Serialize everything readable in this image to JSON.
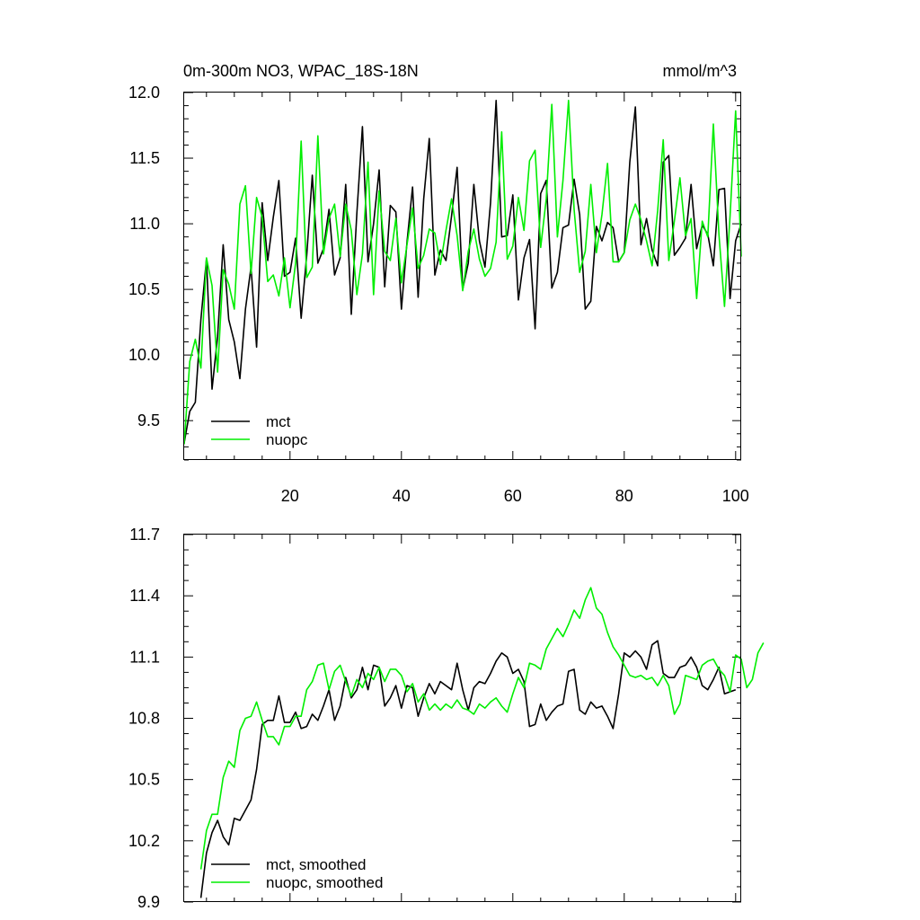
{
  "chart_data": [
    {
      "type": "line",
      "title_left": "0m-300m NO3, WPAC_18S-18N",
      "title_right": "mmol/m^3",
      "xlim": [
        1,
        101
      ],
      "ylim": [
        9.2,
        12.0
      ],
      "xticks": [
        20,
        40,
        60,
        80,
        100
      ],
      "yticks": [
        9.5,
        10.0,
        10.5,
        11.0,
        11.5,
        12.0
      ],
      "ytick_labels": [
        "9.5",
        "10.0",
        "10.5",
        "11.0",
        "11.5",
        "12.0"
      ],
      "legend_position": "lower-left",
      "series": [
        {
          "name": "mct",
          "color": "#000000",
          "x_start": 1,
          "values": [
            9.33,
            9.57,
            9.64,
            10.27,
            10.73,
            9.74,
            10.14,
            10.84,
            10.27,
            10.1,
            9.82,
            10.35,
            10.67,
            10.06,
            11.16,
            10.72,
            11.05,
            11.33,
            10.6,
            10.63,
            10.89,
            10.28,
            10.76,
            11.37,
            10.7,
            10.81,
            11.11,
            10.61,
            10.74,
            11.3,
            10.31,
            11.08,
            11.74,
            10.71,
            11.0,
            11.41,
            10.52,
            11.14,
            11.09,
            10.35,
            10.86,
            11.28,
            10.44,
            11.19,
            11.65,
            10.61,
            10.8,
            10.72,
            11.06,
            11.43,
            10.5,
            10.7,
            11.3,
            10.87,
            10.67,
            11.16,
            11.94,
            10.9,
            10.91,
            11.22,
            10.42,
            10.74,
            10.88,
            10.2,
            11.23,
            11.33,
            10.51,
            10.63,
            10.97,
            10.99,
            11.34,
            11.07,
            10.35,
            10.41,
            10.98,
            10.87,
            11.01,
            10.97,
            10.71,
            10.78,
            11.47,
            11.89,
            10.84,
            11.04,
            10.8,
            10.68,
            11.47,
            11.52,
            10.76,
            10.82,
            10.89,
            11.3,
            10.81,
            10.99,
            10.92,
            10.68,
            11.26,
            11.27,
            10.43,
            10.87,
            11.0
          ]
        },
        {
          "name": "nuopc",
          "color": "#00ee00",
          "x_start": 1,
          "values": [
            9.32,
            9.95,
            10.12,
            9.9,
            10.74,
            10.53,
            9.87,
            10.65,
            10.54,
            10.35,
            11.15,
            11.29,
            10.62,
            11.2,
            11.05,
            10.56,
            10.61,
            10.45,
            10.74,
            10.36,
            10.7,
            11.63,
            10.59,
            10.67,
            11.67,
            10.77,
            11.04,
            11.15,
            10.75,
            11.15,
            10.95,
            10.46,
            10.77,
            11.47,
            10.46,
            11.25,
            10.79,
            10.72,
            11.04,
            10.55,
            10.84,
            11.12,
            10.66,
            10.76,
            10.96,
            10.93,
            10.69,
            10.95,
            11.19,
            10.91,
            10.49,
            10.79,
            10.96,
            10.73,
            10.6,
            10.66,
            10.86,
            11.7,
            10.73,
            10.83,
            11.2,
            10.95,
            11.48,
            11.56,
            10.82,
            11.19,
            11.91,
            10.9,
            11.33,
            11.94,
            11.11,
            10.63,
            10.79,
            11.3,
            10.78,
            11.07,
            11.46,
            10.71,
            10.71,
            10.78,
            11.03,
            11.15,
            11.03,
            10.87,
            10.68,
            11.1,
            11.64,
            10.72,
            11.02,
            11.35,
            10.91,
            11.04,
            10.43,
            11.02,
            10.9,
            11.76,
            10.92,
            10.37,
            11.06,
            11.86,
            10.75
          ]
        }
      ]
    },
    {
      "type": "line",
      "xlim": [
        1,
        101
      ],
      "ylim": [
        9.9,
        11.7
      ],
      "xticks": [
        20,
        40,
        60,
        80,
        100
      ],
      "yticks": [
        9.9,
        10.2,
        10.5,
        10.8,
        11.1,
        11.4,
        11.7
      ],
      "ytick_labels": [
        "9.9",
        "10.2",
        "10.5",
        "10.8",
        "11.1",
        "11.4",
        "11.7"
      ],
      "legend_position": "lower-left",
      "series": [
        {
          "name": "mct, smoothed",
          "color": "#000000",
          "x_start": 4,
          "values": [
            9.92,
            10.14,
            10.24,
            10.3,
            10.22,
            10.18,
            10.31,
            10.3,
            10.35,
            10.4,
            10.55,
            10.77,
            10.79,
            10.79,
            10.91,
            10.78,
            10.78,
            10.83,
            10.75,
            10.76,
            10.82,
            10.79,
            10.86,
            10.94,
            10.79,
            10.86,
            11.0,
            10.9,
            10.94,
            11.05,
            10.94,
            11.06,
            11.05,
            10.86,
            10.9,
            10.96,
            10.85,
            10.96,
            10.95,
            10.81,
            10.9,
            10.97,
            10.92,
            10.98,
            10.96,
            10.94,
            11.07,
            10.94,
            10.84,
            10.95,
            10.98,
            10.97,
            11.02,
            11.08,
            11.12,
            11.1,
            11.02,
            11.04,
            10.98,
            10.76,
            10.77,
            10.87,
            10.79,
            10.83,
            10.86,
            10.87,
            11.03,
            11.04,
            10.84,
            10.82,
            10.88,
            10.85,
            10.86,
            10.81,
            10.75,
            10.92,
            11.12,
            11.1,
            11.13,
            11.1,
            11.04,
            11.16,
            11.18,
            11.02,
            11.0,
            11.0,
            11.05,
            11.06,
            11.1,
            11.05,
            10.96,
            10.94,
            10.99,
            11.05,
            10.92,
            10.93,
            10.94
          ]
        },
        {
          "name": "nuopc, smoothed",
          "color": "#00ee00",
          "x_start": 4,
          "values": [
            10.06,
            10.25,
            10.33,
            10.33,
            10.51,
            10.59,
            10.56,
            10.74,
            10.8,
            10.81,
            10.88,
            10.79,
            10.71,
            10.71,
            10.67,
            10.76,
            10.76,
            10.81,
            10.81,
            10.94,
            10.98,
            11.06,
            11.07,
            10.94,
            11.03,
            11.06,
            10.98,
            10.91,
            10.99,
            10.95,
            11.02,
            10.99,
            11.05,
            10.98,
            11.04,
            11.04,
            11.01,
            10.93,
            10.97,
            10.88,
            10.92,
            10.84,
            10.87,
            10.84,
            10.87,
            10.85,
            10.89,
            10.85,
            10.84,
            10.82,
            10.87,
            10.85,
            10.88,
            10.9,
            10.86,
            10.83,
            10.92,
            11.0,
            10.95,
            11.07,
            11.06,
            11.04,
            11.14,
            11.19,
            11.24,
            11.2,
            11.26,
            11.33,
            11.29,
            11.38,
            11.44,
            11.34,
            11.31,
            11.22,
            11.15,
            11.11,
            11.06,
            11.01,
            11.0,
            11.01,
            10.99,
            11.0,
            10.96,
            11.01,
            10.96,
            10.82,
            10.87,
            11.01,
            11.0,
            10.99,
            11.06,
            11.08,
            11.09,
            11.04,
            11.01,
            10.93,
            11.11,
            11.09,
            10.95,
            10.99,
            11.12,
            11.17
          ]
        }
      ]
    }
  ]
}
